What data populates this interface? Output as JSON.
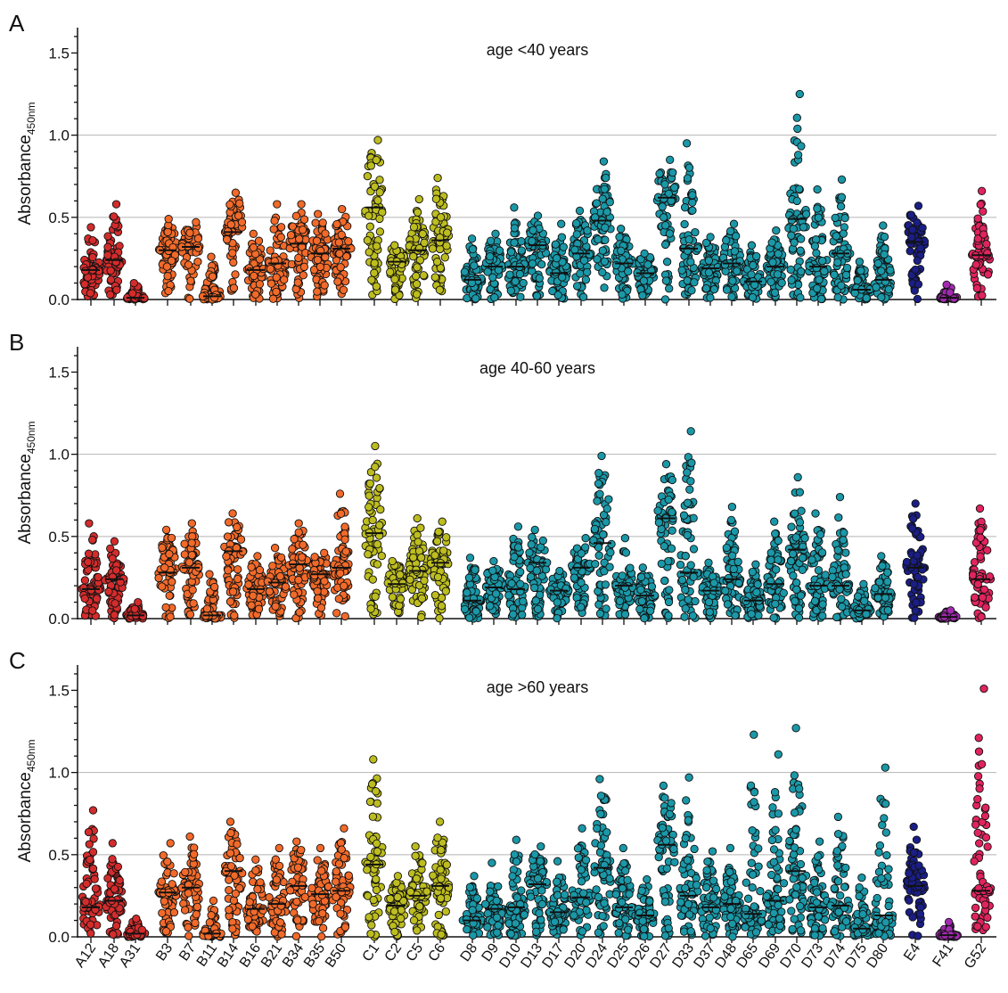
{
  "chart_data": {
    "type": "scatter",
    "subtype": "column dot plot with median lines",
    "ylabel": "Absorbance",
    "ylabel_subscript": "450nm",
    "ylim": [
      0,
      1.6
    ],
    "yticks": [
      "0.0",
      "0.5",
      "1.0",
      "1.5"
    ],
    "gridlines": [
      0.5,
      1.0
    ],
    "categories": [
      "A12",
      "A18",
      "A31",
      "B3",
      "B7",
      "B11",
      "B14",
      "B16",
      "B21",
      "B34",
      "B35",
      "B50",
      "C1",
      "C2",
      "C5",
      "C6",
      "D8",
      "D9",
      "D10",
      "D13",
      "D17",
      "D20",
      "D24",
      "D25",
      "D26",
      "D27",
      "D33",
      "D37",
      "D48",
      "D65",
      "D69",
      "D70",
      "D73",
      "D74",
      "D75",
      "D80",
      "E4",
      "F41",
      "G52"
    ],
    "group_colors": {
      "A": "#d42c2c",
      "B": "#f26a2a",
      "C": "#bdbd1f",
      "D": "#1a98a8",
      "E": "#1a1e85",
      "F": "#a32ab0",
      "G": "#e0245e"
    },
    "panels": [
      {
        "letter": "A",
        "title": "age <40 years",
        "medians": [
          0.18,
          0.24,
          0.01,
          0.3,
          0.32,
          0.02,
          0.41,
          0.18,
          0.22,
          0.34,
          0.28,
          0.31,
          0.56,
          0.23,
          0.3,
          0.36,
          0.12,
          0.2,
          0.2,
          0.33,
          0.16,
          0.28,
          0.48,
          0.22,
          0.16,
          0.62,
          0.31,
          0.19,
          0.22,
          0.11,
          0.2,
          0.49,
          0.2,
          0.28,
          0.06,
          0.12,
          0.35,
          0.01,
          0.27
        ],
        "maxima": [
          0.44,
          0.58,
          0.1,
          0.49,
          0.47,
          0.26,
          0.65,
          0.4,
          0.58,
          0.58,
          0.52,
          0.55,
          0.97,
          0.33,
          0.61,
          0.74,
          0.37,
          0.4,
          0.56,
          0.51,
          0.46,
          0.54,
          0.84,
          0.43,
          0.28,
          0.85,
          0.95,
          0.38,
          0.46,
          0.33,
          0.42,
          1.25,
          0.67,
          0.73,
          0.23,
          0.45,
          0.57,
          0.09,
          0.66
        ]
      },
      {
        "letter": "B",
        "title": "age 40-60 years",
        "medians": [
          0.18,
          0.24,
          0.02,
          0.28,
          0.31,
          0.02,
          0.41,
          0.18,
          0.22,
          0.33,
          0.27,
          0.31,
          0.52,
          0.21,
          0.29,
          0.34,
          0.11,
          0.19,
          0.18,
          0.34,
          0.17,
          0.31,
          0.46,
          0.2,
          0.14,
          0.61,
          0.28,
          0.17,
          0.24,
          0.11,
          0.21,
          0.42,
          0.2,
          0.2,
          0.05,
          0.15,
          0.31,
          0.01,
          0.24
        ],
        "maxima": [
          0.58,
          0.47,
          0.1,
          0.54,
          0.58,
          0.27,
          0.64,
          0.38,
          0.43,
          0.58,
          0.4,
          0.76,
          1.05,
          0.35,
          0.61,
          0.59,
          0.37,
          0.35,
          0.56,
          0.54,
          0.29,
          0.49,
          0.99,
          0.49,
          0.31,
          0.94,
          1.14,
          0.34,
          0.68,
          0.33,
          0.59,
          0.86,
          0.64,
          0.74,
          0.21,
          0.38,
          0.7,
          0.05,
          0.67
        ]
      },
      {
        "letter": "C",
        "title": "age >60 years",
        "medians": [
          0.18,
          0.22,
          0.02,
          0.27,
          0.3,
          0.02,
          0.4,
          0.17,
          0.2,
          0.31,
          0.26,
          0.28,
          0.44,
          0.19,
          0.25,
          0.31,
          0.1,
          0.17,
          0.18,
          0.32,
          0.15,
          0.24,
          0.42,
          0.18,
          0.13,
          0.56,
          0.25,
          0.18,
          0.2,
          0.14,
          0.22,
          0.4,
          0.18,
          0.19,
          0.05,
          0.13,
          0.31,
          0.01,
          0.28
        ],
        "maxima": [
          0.77,
          0.57,
          0.11,
          0.57,
          0.61,
          0.22,
          0.7,
          0.47,
          0.54,
          0.58,
          0.54,
          0.66,
          1.08,
          0.37,
          0.55,
          0.7,
          0.37,
          0.45,
          0.59,
          0.55,
          0.46,
          0.66,
          0.96,
          0.54,
          0.35,
          0.92,
          0.97,
          0.52,
          0.54,
          1.23,
          1.11,
          1.27,
          0.58,
          0.73,
          0.36,
          1.03,
          0.67,
          0.09,
          1.51
        ]
      }
    ]
  }
}
